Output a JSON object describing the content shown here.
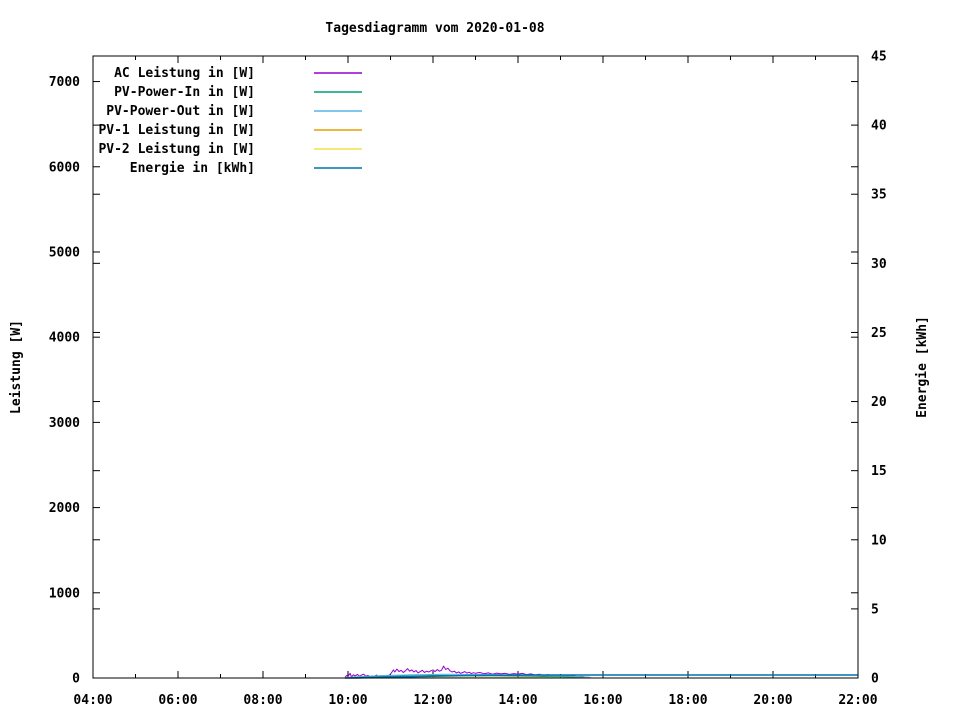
{
  "chart_data": {
    "type": "line",
    "title": "Tagesdiagramm vom 2020-01-08",
    "grid": false,
    "legend_position": "top-left-inside",
    "x_axis": {
      "label": "",
      "unit": "time",
      "start_hour": 4,
      "end_hour": 22,
      "major_step_hours": 2,
      "minor_step_hours": 1,
      "major_tick_labels": [
        "04:00",
        "06:00",
        "08:00",
        "10:00",
        "12:00",
        "14:00",
        "16:00",
        "18:00",
        "20:00",
        "22:00"
      ]
    },
    "y1_axis": {
      "label": "Leistung [W]",
      "min": 0,
      "max": 7300,
      "ticks": [
        0,
        1000,
        2000,
        3000,
        4000,
        5000,
        6000,
        7000
      ]
    },
    "y2_axis": {
      "label": "Energie [kWh]",
      "min": 0,
      "max": 45,
      "ticks": [
        0,
        5,
        10,
        15,
        20,
        25,
        30,
        35,
        40,
        45
      ]
    },
    "series": [
      {
        "name": "AC Leistung in [W]",
        "color": "#9400d3",
        "axis": "y1",
        "lw": 1,
        "points": [
          [
            9.93,
            8
          ],
          [
            9.97,
            30
          ],
          [
            10.0,
            18
          ],
          [
            10.05,
            55
          ],
          [
            10.08,
            15
          ],
          [
            10.13,
            38
          ],
          [
            10.17,
            25
          ],
          [
            10.22,
            42
          ],
          [
            10.27,
            20
          ],
          [
            10.32,
            35
          ],
          [
            10.37,
            45
          ],
          [
            10.42,
            22
          ],
          [
            10.47,
            30
          ],
          [
            10.52,
            15
          ],
          [
            10.57,
            25
          ],
          [
            10.62,
            20
          ],
          [
            10.67,
            35
          ],
          [
            10.72,
            18
          ],
          [
            10.77,
            28
          ],
          [
            10.82,
            22
          ],
          [
            10.87,
            15
          ],
          [
            10.92,
            25
          ],
          [
            10.97,
            32
          ],
          [
            11.02,
            60
          ],
          [
            11.07,
            95
          ],
          [
            11.1,
            70
          ],
          [
            11.15,
            105
          ],
          [
            11.2,
            75
          ],
          [
            11.25,
            90
          ],
          [
            11.3,
            65
          ],
          [
            11.35,
            85
          ],
          [
            11.4,
            110
          ],
          [
            11.45,
            80
          ],
          [
            11.5,
            95
          ],
          [
            11.55,
            70
          ],
          [
            11.6,
            88
          ],
          [
            11.65,
            60
          ],
          [
            11.7,
            75
          ],
          [
            11.75,
            90
          ],
          [
            11.8,
            65
          ],
          [
            11.85,
            80
          ],
          [
            11.9,
            70
          ],
          [
            11.95,
            85
          ],
          [
            12.0,
            95
          ],
          [
            12.05,
            75
          ],
          [
            12.1,
            100
          ],
          [
            12.15,
            80
          ],
          [
            12.2,
            90
          ],
          [
            12.25,
            140
          ],
          [
            12.3,
            100
          ],
          [
            12.35,
            115
          ],
          [
            12.4,
            85
          ],
          [
            12.45,
            70
          ],
          [
            12.5,
            80
          ],
          [
            12.55,
            60
          ],
          [
            12.6,
            72
          ],
          [
            12.65,
            55
          ],
          [
            12.7,
            65
          ],
          [
            12.75,
            75
          ],
          [
            12.8,
            58
          ],
          [
            12.85,
            68
          ],
          [
            12.9,
            52
          ],
          [
            12.95,
            62
          ],
          [
            13.0,
            55
          ],
          [
            13.1,
            65
          ],
          [
            13.2,
            50
          ],
          [
            13.3,
            60
          ],
          [
            13.4,
            45
          ],
          [
            13.5,
            58
          ],
          [
            13.6,
            48
          ],
          [
            13.7,
            55
          ],
          [
            13.8,
            42
          ],
          [
            13.9,
            52
          ],
          [
            14.0,
            45
          ],
          [
            14.1,
            55
          ],
          [
            14.2,
            40
          ],
          [
            14.3,
            48
          ],
          [
            14.4,
            35
          ],
          [
            14.5,
            45
          ],
          [
            14.6,
            30
          ],
          [
            14.7,
            40
          ],
          [
            14.8,
            28
          ],
          [
            14.9,
            35
          ],
          [
            15.0,
            25
          ],
          [
            15.1,
            30
          ],
          [
            15.2,
            20
          ],
          [
            15.3,
            25
          ],
          [
            15.4,
            15
          ],
          [
            15.5,
            18
          ],
          [
            15.6,
            10
          ],
          [
            15.7,
            5
          ]
        ]
      },
      {
        "name": "PV-Power-In in [W]",
        "color": "#009e73",
        "axis": "y1",
        "lw": 1,
        "points": [
          [
            9.93,
            2
          ],
          [
            10.2,
            10
          ],
          [
            10.5,
            14
          ],
          [
            10.8,
            18
          ],
          [
            11.1,
            22
          ],
          [
            11.4,
            25
          ],
          [
            11.7,
            27
          ],
          [
            12.0,
            29
          ],
          [
            12.3,
            30
          ],
          [
            12.6,
            28
          ],
          [
            12.9,
            27
          ],
          [
            13.2,
            28
          ],
          [
            13.5,
            25
          ],
          [
            13.8,
            24
          ],
          [
            14.1,
            22
          ],
          [
            14.4,
            20
          ],
          [
            14.7,
            17
          ],
          [
            15.0,
            14
          ],
          [
            15.3,
            11
          ],
          [
            15.7,
            5
          ]
        ]
      },
      {
        "name": "PV-Power-Out in [W]",
        "color": "#56b4e9",
        "axis": "y1",
        "lw": 1,
        "points": [
          [
            9.93,
            4
          ],
          [
            10.1,
            12
          ],
          [
            10.3,
            18
          ],
          [
            10.6,
            24
          ],
          [
            10.9,
            30
          ],
          [
            11.2,
            34
          ],
          [
            11.5,
            38
          ],
          [
            11.8,
            40
          ],
          [
            12.1,
            42
          ],
          [
            12.4,
            44
          ],
          [
            12.7,
            42
          ],
          [
            13.0,
            40
          ],
          [
            13.3,
            42
          ],
          [
            13.6,
            38
          ],
          [
            13.9,
            36
          ],
          [
            14.2,
            34
          ],
          [
            14.5,
            32
          ],
          [
            14.8,
            28
          ],
          [
            15.1,
            24
          ],
          [
            15.4,
            18
          ],
          [
            15.7,
            8
          ]
        ]
      },
      {
        "name": "PV-1 Leistung in [W]",
        "color": "#e69f00",
        "axis": "y1",
        "lw": 1,
        "points": [
          [
            9.93,
            1
          ],
          [
            10.5,
            2
          ],
          [
            11.0,
            2
          ],
          [
            11.5,
            3
          ],
          [
            12.0,
            3
          ],
          [
            12.5,
            3
          ],
          [
            13.0,
            2
          ],
          [
            13.5,
            2
          ],
          [
            14.0,
            2
          ],
          [
            14.5,
            2
          ],
          [
            15.0,
            1
          ],
          [
            15.7,
            1
          ]
        ]
      },
      {
        "name": "PV-2 Leistung in [W]",
        "color": "#f0e442",
        "axis": "y1",
        "lw": 1,
        "points": [
          [
            9.93,
            1
          ],
          [
            10.5,
            1
          ],
          [
            11.0,
            2
          ],
          [
            11.5,
            2
          ],
          [
            12.0,
            2
          ],
          [
            12.5,
            2
          ],
          [
            13.0,
            2
          ],
          [
            13.5,
            1
          ],
          [
            14.0,
            1
          ],
          [
            14.5,
            1
          ],
          [
            15.0,
            1
          ],
          [
            15.7,
            1
          ]
        ]
      },
      {
        "name": "Energie in [kWh]",
        "color": "#0072b2",
        "axis": "y2",
        "lw": 1.6,
        "points": [
          [
            9.93,
            0
          ],
          [
            10.2,
            0.01
          ],
          [
            10.5,
            0.03
          ],
          [
            10.8,
            0.05
          ],
          [
            11.1,
            0.07
          ],
          [
            11.4,
            0.09
          ],
          [
            11.7,
            0.11
          ],
          [
            12.0,
            0.13
          ],
          [
            12.3,
            0.15
          ],
          [
            12.6,
            0.17
          ],
          [
            12.9,
            0.18
          ],
          [
            13.2,
            0.19
          ],
          [
            13.5,
            0.2
          ],
          [
            14.0,
            0.21
          ],
          [
            14.5,
            0.215
          ],
          [
            15.0,
            0.22
          ],
          [
            15.7,
            0.22
          ],
          [
            22.0,
            0.22
          ]
        ]
      }
    ]
  }
}
